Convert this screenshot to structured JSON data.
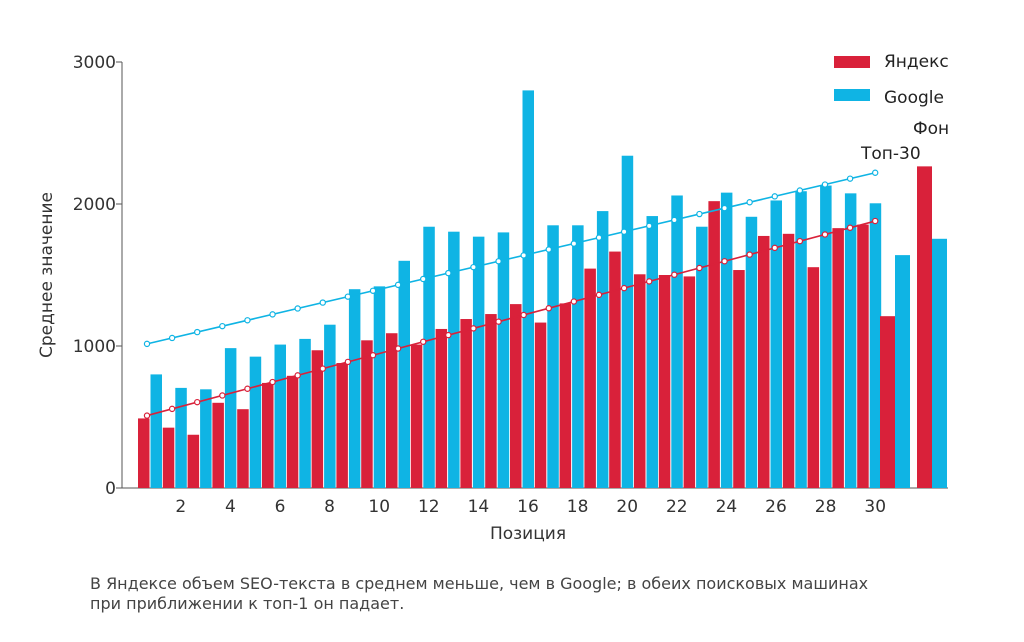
{
  "chart_data": {
    "type": "bar",
    "title": "",
    "xlabel": "Позиция",
    "ylabel": "Среднее значение",
    "ylim": [
      0,
      3000
    ],
    "yticks": [
      0,
      1000,
      2000,
      3000
    ],
    "xticks": [
      2,
      4,
      6,
      8,
      10,
      12,
      14,
      16,
      18,
      20,
      22,
      24,
      26,
      28,
      30
    ],
    "categories": [
      1,
      2,
      3,
      4,
      5,
      6,
      7,
      8,
      9,
      10,
      11,
      12,
      13,
      14,
      15,
      16,
      17,
      18,
      19,
      20,
      21,
      22,
      23,
      24,
      25,
      26,
      27,
      28,
      29,
      30
    ],
    "series": [
      {
        "name": "Яндекс",
        "color": "#d9213a",
        "values": [
          490,
          425,
          375,
          600,
          555,
          740,
          790,
          970,
          880,
          1040,
          1090,
          1010,
          1120,
          1190,
          1225,
          1295,
          1165,
          1300,
          1545,
          1665,
          1505,
          1500,
          1490,
          2020,
          1535,
          1775,
          1790,
          1555,
          1830,
          1855
        ]
      },
      {
        "name": "Google",
        "color": "#0fb4e4",
        "values": [
          800,
          705,
          695,
          985,
          925,
          1010,
          1050,
          1150,
          1400,
          1420,
          1600,
          1840,
          1805,
          1770,
          1800,
          2800,
          1850,
          1850,
          1950,
          2340,
          1915,
          2060,
          1840,
          2080,
          1910,
          2025,
          2090,
          2130,
          2075,
          2005
        ]
      }
    ],
    "trendlines": [
      {
        "series": "Яндекс",
        "color": "#d9213a",
        "start": 510,
        "end": 1880
      },
      {
        "series": "Google",
        "color": "#0fb4e4",
        "start": 1015,
        "end": 2220
      }
    ],
    "background": {
      "label": "Фон",
      "yandex": 1210,
      "google": 1640,
      "yandex_extra": 2265,
      "google_extra": 1755
    },
    "annotations": {
      "top30": "Топ-30"
    },
    "legend": {
      "position": "top-right",
      "entries": [
        "Яндекс",
        "Google"
      ]
    }
  },
  "caption": {
    "line1": "В Яндексе объем SEO-текста в среднем меньше, чем в Google; в обеих поисковых машинах",
    "line2": "при приближении к топ-1 он падает."
  }
}
